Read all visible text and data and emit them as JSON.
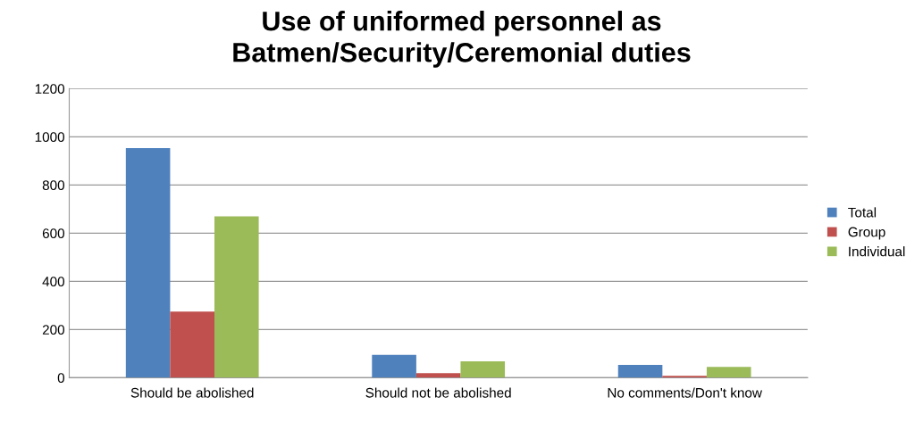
{
  "chart_data": {
    "type": "bar",
    "title": "Use of uniformed personnel as\nBatmen/Security/Ceremonial duties",
    "categories": [
      "Should be abolished",
      "Should not be abolished",
      "No comments/Don't know"
    ],
    "series": [
      {
        "name": "Total",
        "color": "#4f81bd",
        "values": [
          953,
          95,
          53
        ]
      },
      {
        "name": "Group",
        "color": "#c0504d",
        "values": [
          274,
          19,
          8
        ]
      },
      {
        "name": "Individual",
        "color": "#9bbb59",
        "values": [
          670,
          68,
          45
        ]
      }
    ],
    "ylim": [
      0,
      1200
    ],
    "yticks": [
      0,
      200,
      400,
      600,
      800,
      1000,
      1200
    ],
    "grid": "y",
    "legend": "right"
  }
}
